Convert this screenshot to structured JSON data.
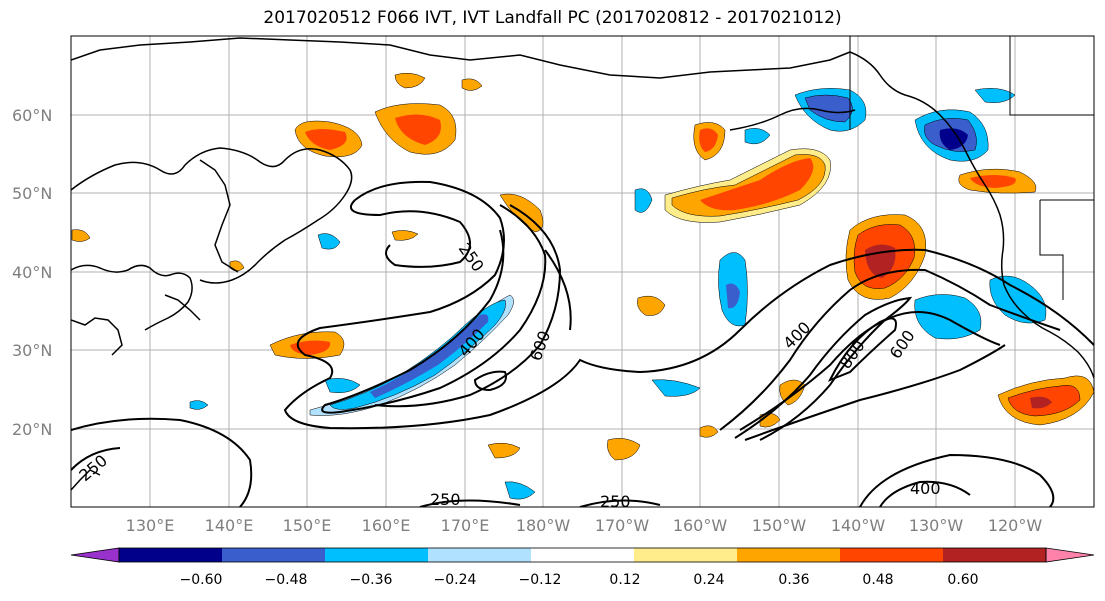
{
  "title": "2017020512 F066 IVT, IVT Landfall PC (2017020812 - 2017021012)",
  "map": {
    "lat_labels": [
      "60°N",
      "50°N",
      "40°N",
      "30°N",
      "20°N"
    ],
    "lon_labels": [
      "130°E",
      "140°E",
      "150°E",
      "160°E",
      "170°E",
      "180°W",
      "170°W",
      "160°W",
      "150°W",
      "140°W",
      "130°W",
      "120°W"
    ],
    "contour_labels": [
      "250",
      "400",
      "600",
      "400",
      "800",
      "600",
      "250",
      "250",
      "250",
      "400"
    ]
  },
  "colorbar": {
    "colors": [
      "#9932cc",
      "#00008b",
      "#3a5fcd",
      "#00bfff",
      "#b0e2ff",
      "#ffffff",
      "#ffec8b",
      "#ffa500",
      "#ff4500",
      "#b22222",
      "#ff82ab"
    ],
    "tick_labels": [
      "−0.60",
      "−0.48",
      "−0.36",
      "−0.24",
      "−0.12",
      "0.12",
      "0.24",
      "0.36",
      "0.48",
      "0.60"
    ]
  }
}
